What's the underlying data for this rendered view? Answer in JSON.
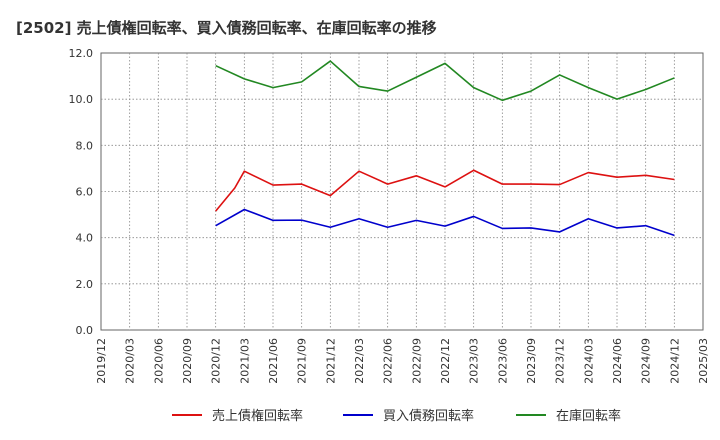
{
  "chart_data": {
    "type": "line",
    "title": "[2502]  売上債権回転率、買入債務回転率、在庫回転率の推移",
    "xlabel": "",
    "ylabel": "",
    "ylim": [
      0,
      12
    ],
    "yticks": [
      "0.0",
      "2.0",
      "4.0",
      "6.0",
      "8.0",
      "10.0",
      "12.0"
    ],
    "x_ticks": [
      "2019/12",
      "2020/03",
      "2020/06",
      "2020/09",
      "2020/12",
      "2021/03",
      "2021/06",
      "2021/09",
      "2021/12",
      "2022/03",
      "2022/06",
      "2022/09",
      "2022/12",
      "2023/03",
      "2023/06",
      "2023/09",
      "2023/12",
      "2024/03",
      "2024/06",
      "2024/09",
      "2024/12",
      "2025/03"
    ],
    "x": [
      "2020/12",
      "2021/03",
      "2021/06",
      "2021/09",
      "2021/12",
      "2022/03",
      "2022/06",
      "2022/09",
      "2022/12",
      "2023/03",
      "2023/06",
      "2023/09",
      "2023/12",
      "2024/03",
      "2024/06",
      "2024/09",
      "2024/12"
    ],
    "grid": true,
    "legend_position": "bottom",
    "series": [
      {
        "name": "売上債権回転率",
        "color": "#dd1111",
        "values": [
          5.15,
          6.88,
          6.28,
          6.32,
          5.82,
          6.88,
          6.32,
          6.68,
          6.2,
          6.92,
          6.32,
          6.32,
          6.3,
          6.82,
          6.62,
          6.7,
          6.52
        ],
        "extra_points": [
          {
            "x": "2021/02",
            "y": 6.15
          }
        ]
      },
      {
        "name": "買入債務回転率",
        "color": "#0000cc",
        "values": [
          4.52,
          5.22,
          4.75,
          4.76,
          4.45,
          4.82,
          4.45,
          4.75,
          4.5,
          4.92,
          4.4,
          4.42,
          4.25,
          4.82,
          4.42,
          4.52,
          4.1
        ]
      },
      {
        "name": "在庫回転率",
        "color": "#228822",
        "values": [
          11.45,
          10.88,
          10.5,
          10.75,
          11.65,
          10.55,
          10.35,
          10.95,
          11.55,
          10.5,
          9.95,
          10.35,
          11.05,
          10.5,
          10.0,
          10.42,
          10.92
        ]
      }
    ]
  }
}
